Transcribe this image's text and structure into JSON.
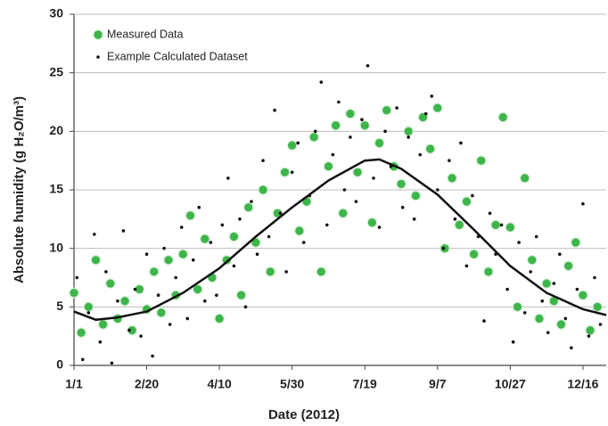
{
  "chart_data": {
    "type": "scatter",
    "x_label": "Date (2012)",
    "y_label": "Absolute humidity (g H₂O/m³)",
    "xlim": [
      0,
      366
    ],
    "ylim": [
      0,
      30
    ],
    "xticks": [
      {
        "value": 0,
        "label": "1/1"
      },
      {
        "value": 50,
        "label": "2/20"
      },
      {
        "value": 100,
        "label": "4/10"
      },
      {
        "value": 150,
        "label": "5/30"
      },
      {
        "value": 200,
        "label": "7/19"
      },
      {
        "value": 250,
        "label": "9/7"
      },
      {
        "value": 300,
        "label": "10/27"
      },
      {
        "value": 350,
        "label": "12/16"
      }
    ],
    "yticks": [
      0,
      5,
      10,
      15,
      20,
      25,
      30
    ],
    "grid": true,
    "legend": "upper left",
    "series": [
      {
        "name": "Measured Data",
        "type": "scatter",
        "color": "#3db54a",
        "x": [
          0,
          5,
          10,
          15,
          20,
          25,
          30,
          35,
          40,
          45,
          50,
          55,
          60,
          65,
          70,
          75,
          80,
          85,
          90,
          95,
          100,
          105,
          110,
          115,
          120,
          125,
          130,
          135,
          140,
          145,
          150,
          155,
          160,
          165,
          170,
          175,
          180,
          185,
          190,
          195,
          200,
          205,
          210,
          215,
          220,
          225,
          230,
          235,
          240,
          245,
          250,
          255,
          260,
          265,
          270,
          275,
          280,
          285,
          290,
          295,
          300,
          305,
          310,
          315,
          320,
          325,
          330,
          335,
          340,
          345,
          350,
          355,
          360
        ],
        "values": [
          6.2,
          2.8,
          5.0,
          9.0,
          3.5,
          7.0,
          4.0,
          5.5,
          3.0,
          6.5,
          4.8,
          8.0,
          4.5,
          9.0,
          6.0,
          9.5,
          12.8,
          6.5,
          10.8,
          7.5,
          4.0,
          9.0,
          11.0,
          6.0,
          13.5,
          10.5,
          15.0,
          8.0,
          13.0,
          16.5,
          18.8,
          11.5,
          14.0,
          19.5,
          8.0,
          17.0,
          20.5,
          13.0,
          21.5,
          16.5,
          20.5,
          12.2,
          19.0,
          21.8,
          17.0,
          15.5,
          20.0,
          14.5,
          21.2,
          18.5,
          22.0,
          10.0,
          16.0,
          12.0,
          14.0,
          9.5,
          17.5,
          8.0,
          12.0,
          21.2,
          11.8,
          5.0,
          16.0,
          9.0,
          4.0,
          7.0,
          5.5,
          3.5,
          8.5,
          10.5,
          6.0,
          3.0,
          5.0
        ]
      },
      {
        "name": "Example Calculated Dataset",
        "type": "scatter",
        "color": "#111111",
        "x": [
          2,
          6,
          10,
          14,
          18,
          22,
          26,
          30,
          34,
          38,
          42,
          46,
          50,
          54,
          58,
          62,
          66,
          70,
          74,
          78,
          82,
          86,
          90,
          94,
          98,
          102,
          106,
          110,
          114,
          118,
          122,
          126,
          130,
          134,
          138,
          142,
          146,
          150,
          154,
          158,
          162,
          166,
          170,
          174,
          178,
          182,
          186,
          190,
          194,
          198,
          202,
          206,
          210,
          214,
          218,
          222,
          226,
          230,
          234,
          238,
          242,
          246,
          250,
          254,
          258,
          262,
          266,
          270,
          274,
          278,
          282,
          286,
          290,
          294,
          298,
          302,
          306,
          310,
          314,
          318,
          322,
          326,
          330,
          334,
          338,
          342,
          346,
          350,
          354,
          358,
          362
        ],
        "values": [
          7.5,
          0.5,
          4.5,
          11.2,
          2.0,
          8.0,
          0.2,
          5.5,
          11.5,
          3.0,
          6.5,
          2.5,
          9.5,
          0.8,
          6.0,
          10.0,
          3.5,
          7.5,
          11.8,
          4.0,
          9.0,
          13.5,
          5.5,
          10.5,
          6.0,
          12.0,
          16.0,
          8.5,
          12.5,
          5.0,
          14.0,
          9.5,
          17.5,
          11.0,
          21.8,
          13.0,
          8.0,
          16.5,
          19.0,
          10.5,
          14.5,
          20.0,
          24.2,
          12.0,
          18.0,
          22.5,
          15.0,
          19.5,
          14.0,
          21.0,
          25.6,
          16.0,
          11.8,
          20.0,
          17.0,
          22.0,
          13.5,
          19.5,
          12.5,
          18.0,
          21.5,
          23.0,
          15.0,
          10.0,
          17.5,
          12.5,
          19.0,
          8.5,
          14.5,
          11.0,
          3.8,
          13.0,
          9.5,
          12.0,
          6.5,
          2.0,
          10.5,
          4.5,
          8.0,
          11.0,
          5.5,
          2.8,
          7.0,
          9.5,
          4.0,
          1.5,
          6.5,
          13.8,
          2.5,
          7.5,
          3.5
        ]
      },
      {
        "type": "line",
        "color": "#111111",
        "x": [
          0,
          15,
          30,
          50,
          75,
          100,
          125,
          150,
          175,
          200,
          210,
          225,
          250,
          275,
          300,
          325,
          350,
          366
        ],
        "values": [
          4.6,
          3.9,
          4.1,
          4.6,
          6.2,
          8.3,
          11.0,
          13.5,
          15.8,
          17.5,
          17.6,
          16.8,
          14.6,
          11.6,
          8.5,
          6.2,
          4.8,
          4.3
        ]
      }
    ]
  }
}
